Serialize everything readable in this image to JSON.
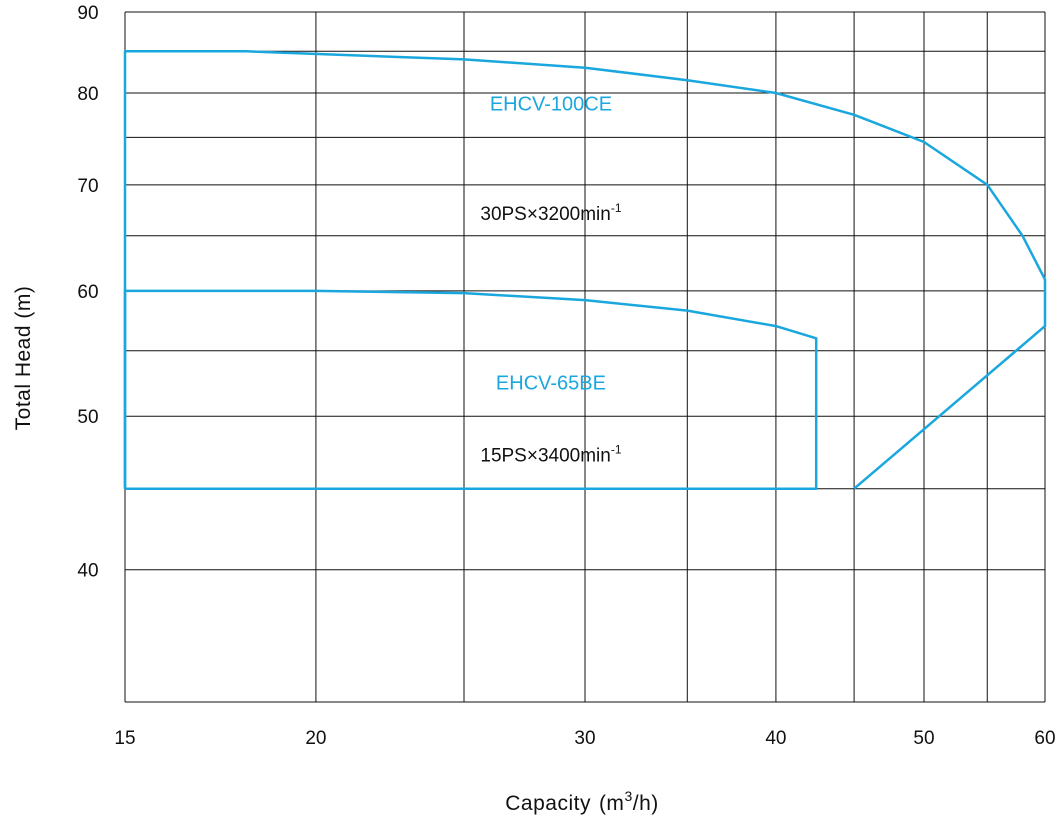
{
  "chart_data": {
    "type": "line",
    "x_scale": "log",
    "y_scale": "log",
    "xlim": [
      15,
      60
    ],
    "ylim": [
      33,
      90
    ],
    "x_grid": [
      15,
      20,
      25,
      30,
      35,
      40,
      45,
      50,
      55,
      60
    ],
    "y_grid": [
      33,
      40,
      45,
      50,
      55,
      60,
      65,
      70,
      75,
      80,
      85,
      90
    ],
    "x_ticks": [
      {
        "value": 15,
        "label": "15"
      },
      {
        "value": 20,
        "label": "20"
      },
      {
        "value": 30,
        "label": "30"
      },
      {
        "value": 40,
        "label": "40"
      },
      {
        "value": 50,
        "label": "50"
      },
      {
        "value": 60,
        "label": "60"
      }
    ],
    "y_ticks": [
      {
        "value": 40,
        "label": "40"
      },
      {
        "value": 50,
        "label": "50"
      },
      {
        "value": 60,
        "label": "60"
      },
      {
        "value": 70,
        "label": "70"
      },
      {
        "value": 80,
        "label": "80"
      },
      {
        "value": 90,
        "label": "90"
      }
    ],
    "xlabel_main": "Capacity",
    "xlabel_unit_pre": "(m",
    "xlabel_unit_sup": "3",
    "xlabel_unit_post": "/h)",
    "ylabel": "Total Head (m)",
    "grid": true,
    "series_color": "#1aa7de",
    "series": [
      {
        "name": "EHCV-100CE",
        "spec_main": "30PS×3200min",
        "spec_sup": "-1",
        "label_at": [
          28.5,
          78.0
        ],
        "spec_at": [
          28.5,
          66.5
        ],
        "points": [
          [
            15,
            45
          ],
          [
            15,
            85
          ],
          [
            18,
            85
          ],
          [
            25,
            84
          ],
          [
            30,
            83
          ],
          [
            35,
            81.5
          ],
          [
            40,
            80
          ],
          [
            45,
            77.5
          ],
          [
            50,
            74.5
          ],
          [
            55,
            70
          ],
          [
            58,
            65
          ],
          [
            60,
            61
          ],
          [
            60,
            57
          ],
          [
            45,
            45
          ]
        ]
      },
      {
        "name": "EHCV-65BE",
        "spec_main": "15PS×3400min",
        "spec_sup": "-1",
        "label_at": [
          28.5,
          52.0
        ],
        "spec_at": [
          28.5,
          46.8
        ],
        "points": [
          [
            15,
            45
          ],
          [
            15,
            60
          ],
          [
            20,
            60
          ],
          [
            25,
            59.8
          ],
          [
            30,
            59.2
          ],
          [
            35,
            58.3
          ],
          [
            40,
            57
          ],
          [
            42.5,
            56
          ],
          [
            42.5,
            45
          ],
          [
            15,
            45
          ]
        ]
      }
    ]
  }
}
